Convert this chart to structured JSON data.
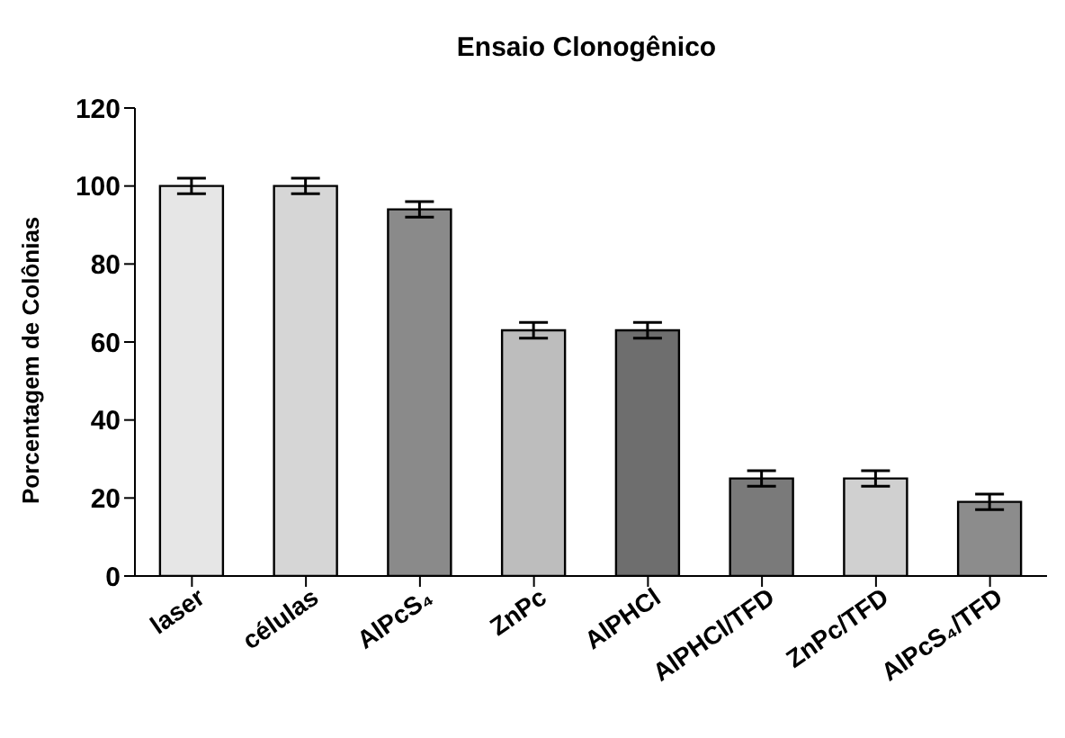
{
  "chart_data": {
    "type": "bar",
    "title": "Ensaio Clonogênico",
    "ylabel": "Porcentagem de Colônias",
    "categories": [
      "laser",
      "células",
      "AlPcS₄",
      "ZnPc",
      "AlPHCl",
      "AlPHCl/TFD",
      "ZnPc/TFD",
      "AlPcS₄/TFD"
    ],
    "values": [
      100,
      100,
      94,
      63,
      63,
      25,
      25,
      19
    ],
    "errors": [
      2,
      2,
      2,
      2,
      2,
      2,
      2,
      2
    ],
    "colors": [
      "#e6e6e6",
      "#d6d6d6",
      "#8a8a8a",
      "#bdbdbd",
      "#6e6e6e",
      "#7a7a7a",
      "#d0d0d0",
      "#8c8c8c"
    ],
    "ylim": [
      0,
      120
    ],
    "yticks": [
      0,
      20,
      40,
      60,
      80,
      100,
      120
    ],
    "grid": false,
    "legend": false
  }
}
